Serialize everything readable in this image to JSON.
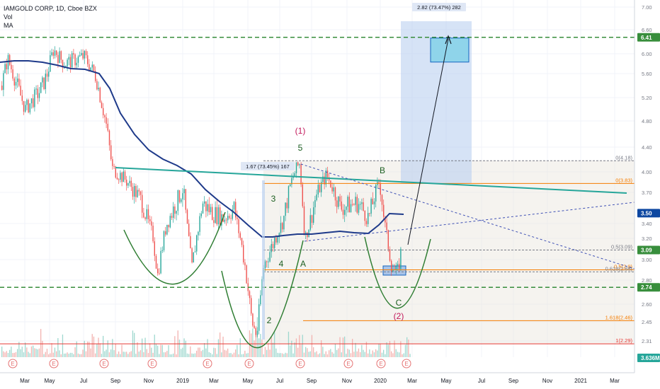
{
  "legend": {
    "symbol": "IAMGOLD CORP, 1D, Cboe BZX",
    "vol": "Vol",
    "ma": "MA"
  },
  "chart_data": {
    "type": "candlestick",
    "symbol": "IAMGOLD CORP",
    "interval": "1D",
    "exchange": "Cboe BZX",
    "y_axis": {
      "ticks": [
        7.0,
        6.6,
        6.0,
        5.6,
        5.2,
        4.8,
        4.4,
        4.0,
        3.7,
        3.4,
        3.2,
        3.0,
        2.8,
        2.6,
        2.45,
        2.31
      ],
      "tick_labels": [
        "7.00",
        "6.60",
        "6.00",
        "5.60",
        "5.20",
        "4.80",
        "4.40",
        "4.00",
        "3.70",
        "3.40",
        "3.20",
        "3.00",
        "2.80",
        "2.60",
        "2.45",
        "2.31"
      ]
    },
    "x_axis": {
      "tick_labels": [
        "Mar",
        "May",
        "Jul",
        "Sep",
        "Nov",
        "2019",
        "Mar",
        "May",
        "Jul",
        "Sep",
        "Nov",
        "2020",
        "Mar",
        "May",
        "Jul",
        "Sep",
        "Nov",
        "2021",
        "Mar"
      ]
    },
    "price_badges": [
      {
        "label": "6.41",
        "value": 6.41,
        "color": "#388e3c"
      },
      {
        "label": "3.50",
        "value": 3.5,
        "color": "#0d47a1"
      },
      {
        "label": "3.09",
        "value": 3.09,
        "color": "#388e3c"
      },
      {
        "label": "2.74",
        "value": 2.74,
        "color": "#388e3c"
      },
      {
        "label": "3.636M",
        "value": 0,
        "color": "#26a69a"
      }
    ],
    "horizontal_levels": [
      {
        "value": 6.41,
        "style": "dashed",
        "color": "#388e3c"
      },
      {
        "value": 2.74,
        "style": "dashed",
        "color": "#388e3c"
      }
    ],
    "fib_levels": [
      {
        "label": "0(4.18)",
        "value": 4.18,
        "color": "#787b86"
      },
      {
        "label": "0(3.83)",
        "value": 3.83,
        "color": "#f57c00"
      },
      {
        "label": "0.5(3.09)",
        "value": 3.09,
        "color": "#787b86"
      },
      {
        "label": "0.5(2.9)",
        "value": 2.9,
        "color": "#f57c00"
      },
      {
        "label": "0.618(2.88)",
        "value": 2.88,
        "color": "#787b86"
      },
      {
        "label": "1.618(2.46)",
        "value": 2.46,
        "color": "#f57c00"
      },
      {
        "label": "1(2.29)",
        "value": 2.29,
        "color": "#e53935"
      }
    ],
    "measurements": [
      {
        "label": "1.67 (73.45%) 167"
      },
      {
        "label": "2.82 (73.47%) 282"
      }
    ],
    "wave_labels": [
      {
        "text": "(1)",
        "color": "#c2185b"
      },
      {
        "text": "5",
        "color": "#1b5e20"
      },
      {
        "text": "3",
        "color": "#1b5e20"
      },
      {
        "text": "4",
        "color": "#1b5e20"
      },
      {
        "text": "A",
        "color": "#1b5e20"
      },
      {
        "text": "B",
        "color": "#1b5e20"
      },
      {
        "text": "2",
        "color": "#1b5e20"
      },
      {
        "text": "C",
        "color": "#1b5e20"
      },
      {
        "text": "(2)",
        "color": "#c2185b"
      }
    ],
    "earnings_markers": [
      "E",
      "E",
      "E",
      "E",
      "E",
      "E",
      "E",
      "E",
      "E",
      "E",
      "E"
    ],
    "series": [
      {
        "name": "MA",
        "color": "#1e3a8a",
        "values_approx": [
          5.72,
          5.72,
          5.62,
          5.55,
          4.8,
          4.25,
          3.9,
          3.8,
          3.6,
          3.3,
          3.25,
          3.27,
          3.27,
          3.24,
          3.35,
          3.5
        ]
      },
      {
        "name": "Price",
        "color": "#ef5350",
        "values_approx": [
          5.4,
          5.9,
          5.7,
          5.6,
          5.3,
          4.1,
          3.5,
          3.2,
          3.6,
          3.4,
          2.45,
          3.6,
          4.05,
          3.55,
          3.7,
          3.4,
          2.85,
          3.09
        ]
      }
    ]
  }
}
